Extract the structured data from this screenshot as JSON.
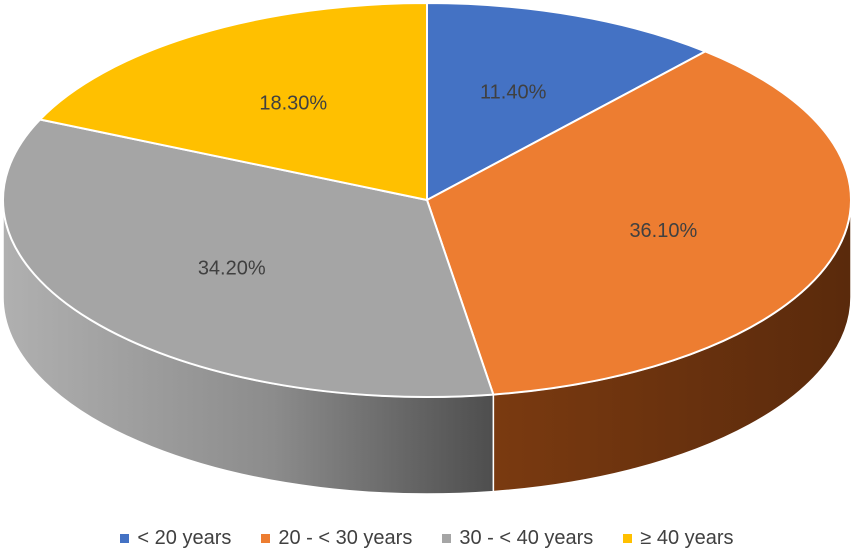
{
  "chart_data": {
    "type": "pie",
    "title": "",
    "categories": [
      "< 20 years",
      "20 - < 30 years",
      "30 - < 40 years",
      "≥ 40 years"
    ],
    "values": [
      11.4,
      36.1,
      34.2,
      18.3
    ],
    "labels": [
      "11.40%",
      "36.10%",
      "34.20%",
      "18.30%"
    ],
    "colors": [
      "#4472C4",
      "#ED7D31",
      "#A5A5A5",
      "#FFC000"
    ],
    "side_colors": [
      "#2F528F",
      "#8B4513",
      "#7F7F7F",
      "#BF9000"
    ],
    "legend_position": "bottom",
    "style": "3d"
  },
  "legend": {
    "items": [
      {
        "label": "< 20 years",
        "color": "#4472C4"
      },
      {
        "label": "20 - < 30 years",
        "color": "#ED7D31"
      },
      {
        "label": "30 - < 40 years",
        "color": "#A5A5A5"
      },
      {
        "label": "≥ 40 years",
        "color": "#FFC000"
      }
    ]
  }
}
